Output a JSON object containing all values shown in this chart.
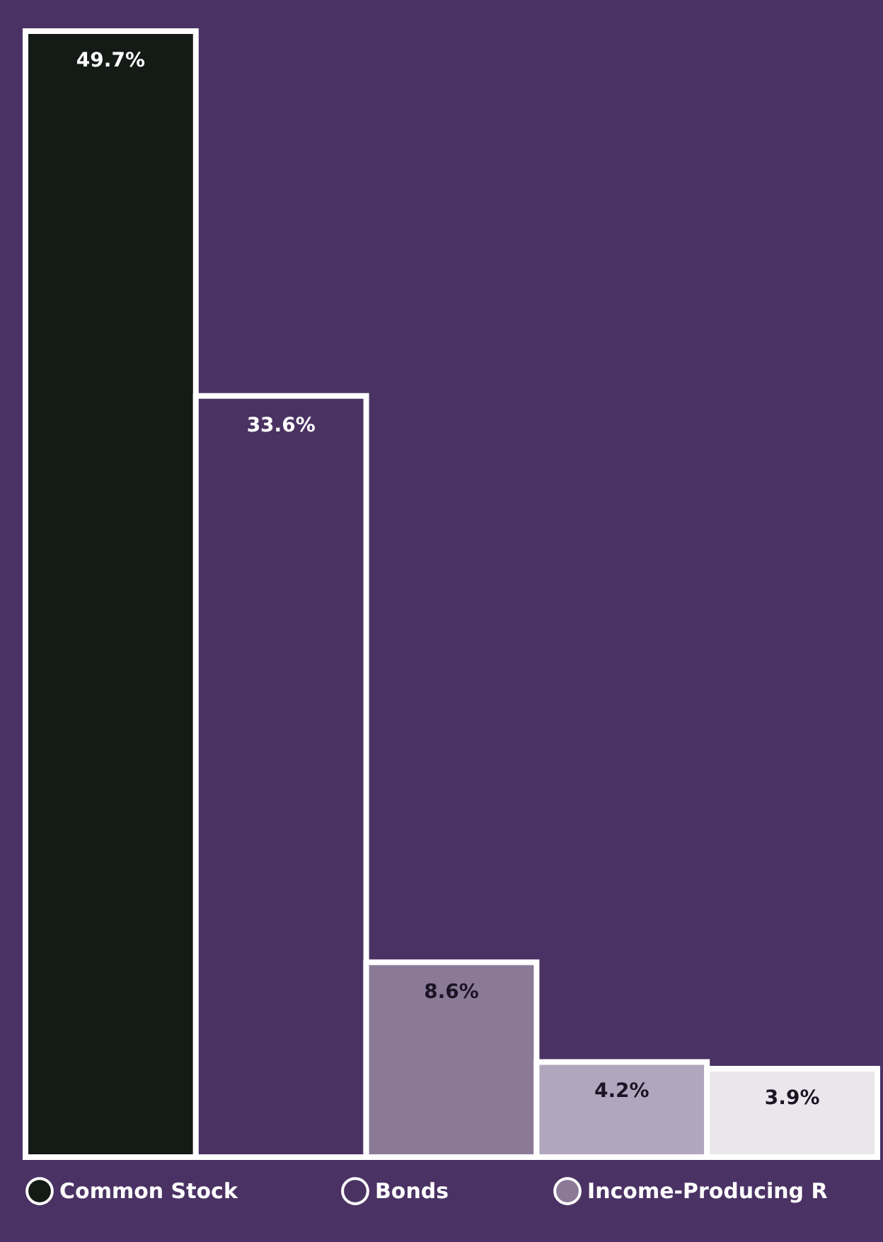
{
  "chart_data": {
    "type": "bar",
    "stacked": true,
    "categories": [
      null,
      null,
      null,
      null,
      null
    ],
    "series": [
      {
        "name": "Common Stock",
        "color": "#141a16",
        "values": [
          49.7,
          null,
          null,
          null,
          null
        ],
        "value_labels": [
          "49.7%",
          null,
          null,
          null,
          null
        ]
      },
      {
        "name": "Bonds",
        "color": "#4a3262",
        "values": [
          null,
          33.6,
          null,
          null,
          null
        ],
        "value_labels": [
          null,
          "33.6%",
          null,
          null,
          null
        ]
      },
      {
        "name": "Income-Producing R",
        "color": "#8a7a98",
        "values": [
          null,
          null,
          8.6,
          null,
          null
        ],
        "value_labels": [
          null,
          null,
          "8.6%",
          null,
          null
        ]
      },
      {
        "color": "#b2a6be",
        "values": [
          null,
          null,
          null,
          4.2,
          null
        ],
        "value_labels": [
          null,
          null,
          null,
          "4.2%",
          null
        ]
      },
      {
        "color": "#e9e7ec",
        "values": [
          null,
          null,
          null,
          null,
          3.9
        ],
        "value_labels": [
          null,
          null,
          null,
          null,
          "3.9%"
        ]
      }
    ],
    "legend": "bottom"
  }
}
